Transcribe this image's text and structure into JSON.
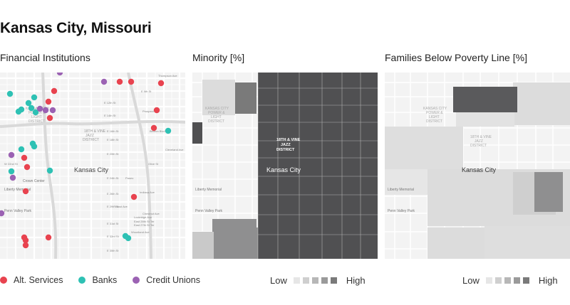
{
  "title": "Kansas City, Missouri",
  "colors": {
    "alt_services": "#e8434f",
    "banks": "#2ec1b4",
    "credit_unions": "#9b62b3"
  },
  "panels": {
    "financial": {
      "title": "Financial Institutions",
      "labels": {
        "city": "Kansas City",
        "district": "18TH & VINE\nJAZZ DISTRICT",
        "power_light": "KANSAS CITY\nPOWER &\nLIGHT\nDISTRICT",
        "crown_center": "Crown Center",
        "liberty_memorial": "Liberty Memorial",
        "penn_valley": "Penn Valley Park",
        "streets": [
          "Thompson Ave",
          "E 9th St",
          "E 12th St",
          "E 14th St",
          "E 16th St",
          "E 18th St",
          "E 20th St",
          "W 22nd St",
          "E 24th St",
          "E 26th St",
          "E 29th St",
          "E 31st St",
          "E 33rd St",
          "E 35th St",
          "Prospect Ave",
          "Olive St",
          "Paseo",
          "Troost Ave",
          "Woodland Ave",
          "Cleveland Ave",
          "Indiana Ave",
          "Chestnut Ave",
          "Benton Blvd",
          "Lockridge Ave",
          "East 28th St Ter",
          "East 27th St Ter"
        ]
      },
      "legend": [
        {
          "label": "Alt. Services",
          "color": "#e8434f"
        },
        {
          "label": "Banks",
          "color": "#2ec1b4"
        },
        {
          "label": "Credit Unions",
          "color": "#9b62b3"
        }
      ]
    },
    "minority": {
      "title": "Minority [%]",
      "labels": {
        "city": "Kansas City",
        "district": "18TH & VINE\nJAZZ DISTRICT",
        "power_light": "KANSAS CITY\nPOWER &\nLIGHT\nDISTRICT",
        "liberty_memorial": "Liberty Memorial",
        "penn_valley": "Penn Valley Park"
      },
      "scale_low": "Low",
      "scale_high": "High"
    },
    "poverty": {
      "title": "Families Below Poverty Line [%]",
      "labels": {
        "city": "Kansas City",
        "district": "18TH & VINE\nJAZZ DISTRICT",
        "power_light": "KANSAS CITY\nPOWER &\nLIGHT\nDISTRICT",
        "liberty_memorial": "Liberty Memorial",
        "penn_valley": "Penn Valley Park"
      },
      "scale_low": "Low",
      "scale_high": "High"
    }
  },
  "scale_colors": [
    "#e6e6e6",
    "#cfcfcf",
    "#b7b7b7",
    "#9a9a9a",
    "#7a7a7a"
  ]
}
